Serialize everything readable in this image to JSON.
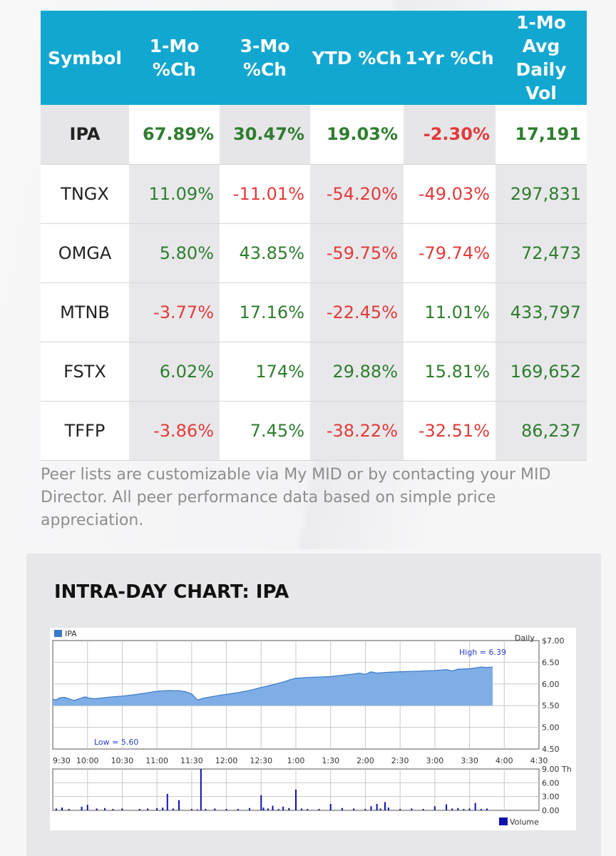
{
  "peer_table": {
    "headers": [
      "Symbol",
      "1-Mo %Ch",
      "3-Mo %Ch",
      "YTD %Ch",
      "1-Yr %Ch",
      "1-Mo Avg Daily Vol"
    ],
    "header_lines": [
      [
        "Symbol"
      ],
      [
        "1-Mo",
        "%Ch"
      ],
      [
        "3-Mo",
        "%Ch"
      ],
      [
        "YTD %Ch"
      ],
      [
        "1-Yr %Ch"
      ],
      [
        "1-Mo",
        "Avg Daily",
        "Vol"
      ]
    ],
    "rows": [
      {
        "symbol": "IPA",
        "m1": "67.89%",
        "m3": "30.47%",
        "ytd": "19.03%",
        "y1": "-2.30%",
        "vol": "17,191"
      },
      {
        "symbol": "TNGX",
        "m1": "11.09%",
        "m3": "-11.01%",
        "ytd": "-54.20%",
        "y1": "-49.03%",
        "vol": "297,831"
      },
      {
        "symbol": "OMGA",
        "m1": "5.80%",
        "m3": "43.85%",
        "ytd": "-59.75%",
        "y1": "-79.74%",
        "vol": "72,473"
      },
      {
        "symbol": "MTNB",
        "m1": "-3.77%",
        "m3": "17.16%",
        "ytd": "-22.45%",
        "y1": "11.01%",
        "vol": "433,797"
      },
      {
        "symbol": "FSTX",
        "m1": "6.02%",
        "m3": "174%",
        "ytd": "29.88%",
        "y1": "15.81%",
        "vol": "169,652"
      },
      {
        "symbol": "TFFP",
        "m1": "-3.86%",
        "m3": "7.45%",
        "ytd": "-38.22%",
        "y1": "-32.51%",
        "vol": "86,237"
      }
    ]
  },
  "disclaimer": "Peer lists are customizable via My MID or by contacting your MID Director. All peer performance data based on simple price appreciation.",
  "chart_section": {
    "title": "INTRA-DAY CHART: IPA"
  },
  "colors": {
    "header_bg": "#12a7d0",
    "positive": "#2f7d2f",
    "negative": "#e23a3a",
    "area_fill": "#7faee6",
    "area_line": "#3a78c8",
    "volume_bar": "#1010b0"
  },
  "chart_data": [
    {
      "type": "area",
      "legend": "IPA",
      "label_right": "Daily",
      "annotations": {
        "high": "High = 6.39",
        "low": "Low = 5.60"
      },
      "y_ticks": [
        "$7.00",
        "6.50",
        "6.00",
        "5.50",
        "5.00",
        "4.50"
      ],
      "y_tick_values": [
        7.0,
        6.5,
        6.0,
        5.5,
        5.0,
        4.5
      ],
      "ylim": [
        4.5,
        7.0
      ],
      "x_ticks": [
        "9:30",
        "10:00",
        "10:30",
        "11:00",
        "11:30",
        "12:00",
        "12:30",
        "1:00",
        "1:30",
        "2:00",
        "2:30",
        "3:00",
        "3:30",
        "4:00",
        "4:30"
      ],
      "x_tick_minutes": [
        0,
        30,
        60,
        90,
        120,
        150,
        180,
        210,
        240,
        270,
        300,
        330,
        360,
        390,
        420
      ],
      "series": [
        {
          "x_minutes": [
            0,
            3,
            6,
            10,
            14,
            18,
            22,
            26,
            28,
            32,
            36,
            40,
            50,
            60,
            70,
            80,
            90,
            100,
            110,
            115,
            120,
            125,
            130,
            140,
            150,
            160,
            170,
            180,
            190,
            200,
            205,
            210,
            220,
            230,
            240,
            250,
            260,
            265,
            270,
            275,
            280,
            290,
            300,
            310,
            320,
            330,
            340,
            345,
            350,
            360,
            365,
            370,
            375,
            380
          ],
          "values": [
            5.65,
            5.63,
            5.68,
            5.69,
            5.66,
            5.62,
            5.65,
            5.69,
            5.7,
            5.67,
            5.66,
            5.67,
            5.7,
            5.72,
            5.75,
            5.79,
            5.83,
            5.85,
            5.84,
            5.82,
            5.77,
            5.63,
            5.67,
            5.72,
            5.76,
            5.8,
            5.85,
            5.92,
            5.98,
            6.05,
            6.1,
            6.13,
            6.15,
            6.16,
            6.17,
            6.2,
            6.23,
            6.25,
            6.22,
            6.28,
            6.25,
            6.27,
            6.28,
            6.29,
            6.3,
            6.31,
            6.33,
            6.3,
            6.34,
            6.35,
            6.37,
            6.39,
            6.38,
            6.39
          ]
        }
      ]
    },
    {
      "type": "bar",
      "legend": "Volume",
      "y_ticks": [
        "9.00 Th",
        "6.00",
        "3.00",
        "0.00"
      ],
      "y_tick_values": [
        9,
        6,
        3,
        0
      ],
      "ylim": [
        0,
        9
      ],
      "series": [
        {
          "name": "Volume",
          "x_minutes": [
            3,
            8,
            14,
            25,
            30,
            38,
            45,
            52,
            60,
            75,
            82,
            90,
            95,
            99,
            104,
            109,
            120,
            125,
            128,
            132,
            140,
            150,
            160,
            170,
            180,
            182,
            186,
            190,
            195,
            199,
            204,
            210,
            215,
            220,
            230,
            240,
            250,
            260,
            270,
            275,
            280,
            283,
            287,
            290,
            300,
            310,
            320,
            330,
            340,
            345,
            350,
            355,
            360,
            365,
            370,
            375
          ],
          "values": [
            0.4,
            0.6,
            0.3,
            0.8,
            1.2,
            0.4,
            0.5,
            0.3,
            0.4,
            0.3,
            0.4,
            0.5,
            0.6,
            3.6,
            0.4,
            2.2,
            0.3,
            0.2,
            9.0,
            0.3,
            0.4,
            0.3,
            0.3,
            0.5,
            3.3,
            0.6,
            0.4,
            1.0,
            0.3,
            0.8,
            0.5,
            4.5,
            0.4,
            0.3,
            0.3,
            1.4,
            0.5,
            0.4,
            0.3,
            0.9,
            1.4,
            0.4,
            1.8,
            0.6,
            0.3,
            0.4,
            0.3,
            0.9,
            1.3,
            0.4,
            0.5,
            0.3,
            0.4,
            1.6,
            0.3,
            0.4
          ]
        }
      ]
    }
  ]
}
